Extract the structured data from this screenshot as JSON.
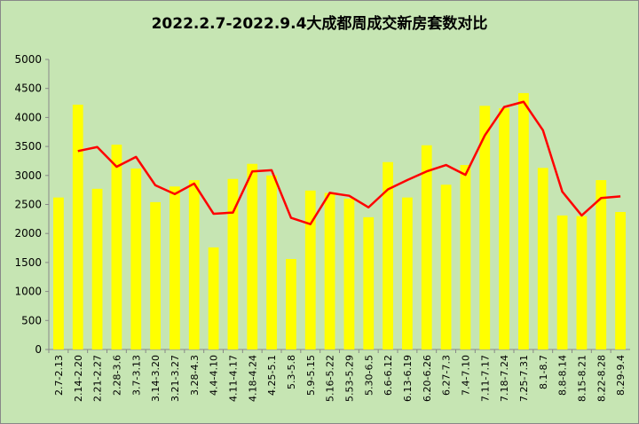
{
  "chart_data": {
    "type": "bar-line",
    "title": "2022.2.7-2022.9.4大成都周成交新房套数对比",
    "categories": [
      "2.7-2.13",
      "2.14-2.20",
      "2.21-2.27",
      "2.28-3.6",
      "3.7-3.13",
      "3.14-3.20",
      "3.21-3.27",
      "3.28-4.3",
      "4.4-4.10",
      "4.11-4.17",
      "4.18-4.24",
      "4.25-5.1",
      "5.3-5.8",
      "5.9-5.15",
      "5.16-5.22",
      "5.53-5.29",
      "5.30-6.5",
      "6.6-6.12",
      "6.13-6.19",
      "6.20-6.26",
      "6.27-7.3",
      "7.4-7.10",
      "7.11-7.17",
      "7.18-7.24",
      "7.25-7.31",
      "8.1-8.7",
      "8.8-8.14",
      "8.15-8.21",
      "8.22-8.28",
      "8.29-9.4"
    ],
    "series": [
      {
        "type": "bar",
        "color": "#ffff00",
        "values": [
          2620,
          4220,
          2770,
          3530,
          3120,
          2540,
          2810,
          2920,
          1760,
          2940,
          3200,
          3000,
          1560,
          2740,
          2700,
          2600,
          2280,
          3230,
          2620,
          3520,
          2840,
          3180,
          4200,
          4160,
          4420,
          3130,
          2310,
          2300,
          2920,
          2370
        ]
      },
      {
        "type": "line",
        "color": "#ff0000",
        "values": [
          null,
          3420,
          3490,
          3150,
          3320,
          2830,
          2680,
          2860,
          2340,
          2360,
          3070,
          3090,
          2270,
          2160,
          2700,
          2650,
          2450,
          2760,
          2920,
          3070,
          3180,
          3010,
          3690,
          4180,
          4270,
          3780,
          2720,
          2310,
          2610,
          2640
        ]
      }
    ],
    "ylim": [
      0,
      5000
    ],
    "yticks": [
      0,
      500,
      1000,
      1500,
      2000,
      2500,
      3000,
      3500,
      4000,
      4500,
      5000
    ],
    "grid": false
  }
}
